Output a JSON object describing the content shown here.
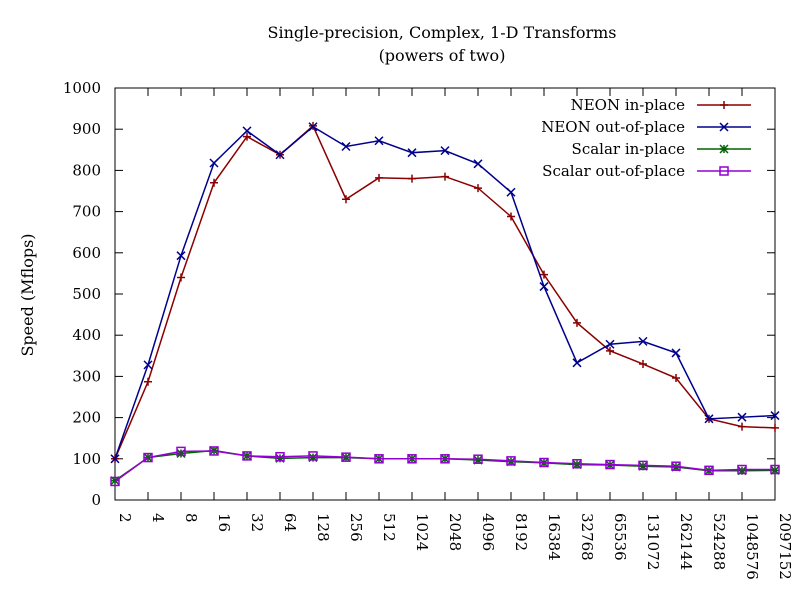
{
  "chart_data": {
    "type": "line",
    "title": "Single-precision, Complex, 1-D Transforms",
    "subtitle": "(powers of two)",
    "xlabel": "",
    "ylabel": "Speed (Mflops)",
    "ylim": [
      0,
      1000
    ],
    "yticks": [
      0,
      100,
      200,
      300,
      400,
      500,
      600,
      700,
      800,
      900,
      1000
    ],
    "grid": false,
    "legend_position": "top-right",
    "categories": [
      "2",
      "4",
      "8",
      "16",
      "32",
      "64",
      "128",
      "256",
      "512",
      "1024",
      "2048",
      "4096",
      "8192",
      "16384",
      "32768",
      "65536",
      "131072",
      "262144",
      "524288",
      "1048576",
      "2097152"
    ],
    "series": [
      {
        "name": "NEON in-place",
        "color": "#8b0000",
        "marker": "plus",
        "values": [
          100,
          287,
          540,
          770,
          882,
          838,
          908,
          730,
          782,
          780,
          785,
          757,
          688,
          547,
          430,
          362,
          330,
          296,
          197,
          178,
          175
        ]
      },
      {
        "name": "NEON out-of-place",
        "color": "#00008b",
        "marker": "cross",
        "values": [
          100,
          328,
          593,
          818,
          896,
          838,
          906,
          858,
          872,
          843,
          848,
          816,
          747,
          518,
          333,
          378,
          385,
          357,
          197,
          201,
          205
        ]
      },
      {
        "name": "Scalar in-place",
        "color": "#006400",
        "marker": "star",
        "values": [
          47,
          103,
          113,
          120,
          107,
          101,
          103,
          103,
          100,
          100,
          100,
          97,
          93,
          90,
          86,
          85,
          82,
          80,
          71,
          71,
          72
        ]
      },
      {
        "name": "Scalar out-of-place",
        "color": "#9400d3",
        "marker": "square",
        "values": [
          45,
          103,
          118,
          119,
          107,
          105,
          107,
          104,
          100,
          100,
          100,
          99,
          95,
          91,
          88,
          86,
          84,
          82,
          72,
          74,
          74
        ]
      }
    ]
  }
}
